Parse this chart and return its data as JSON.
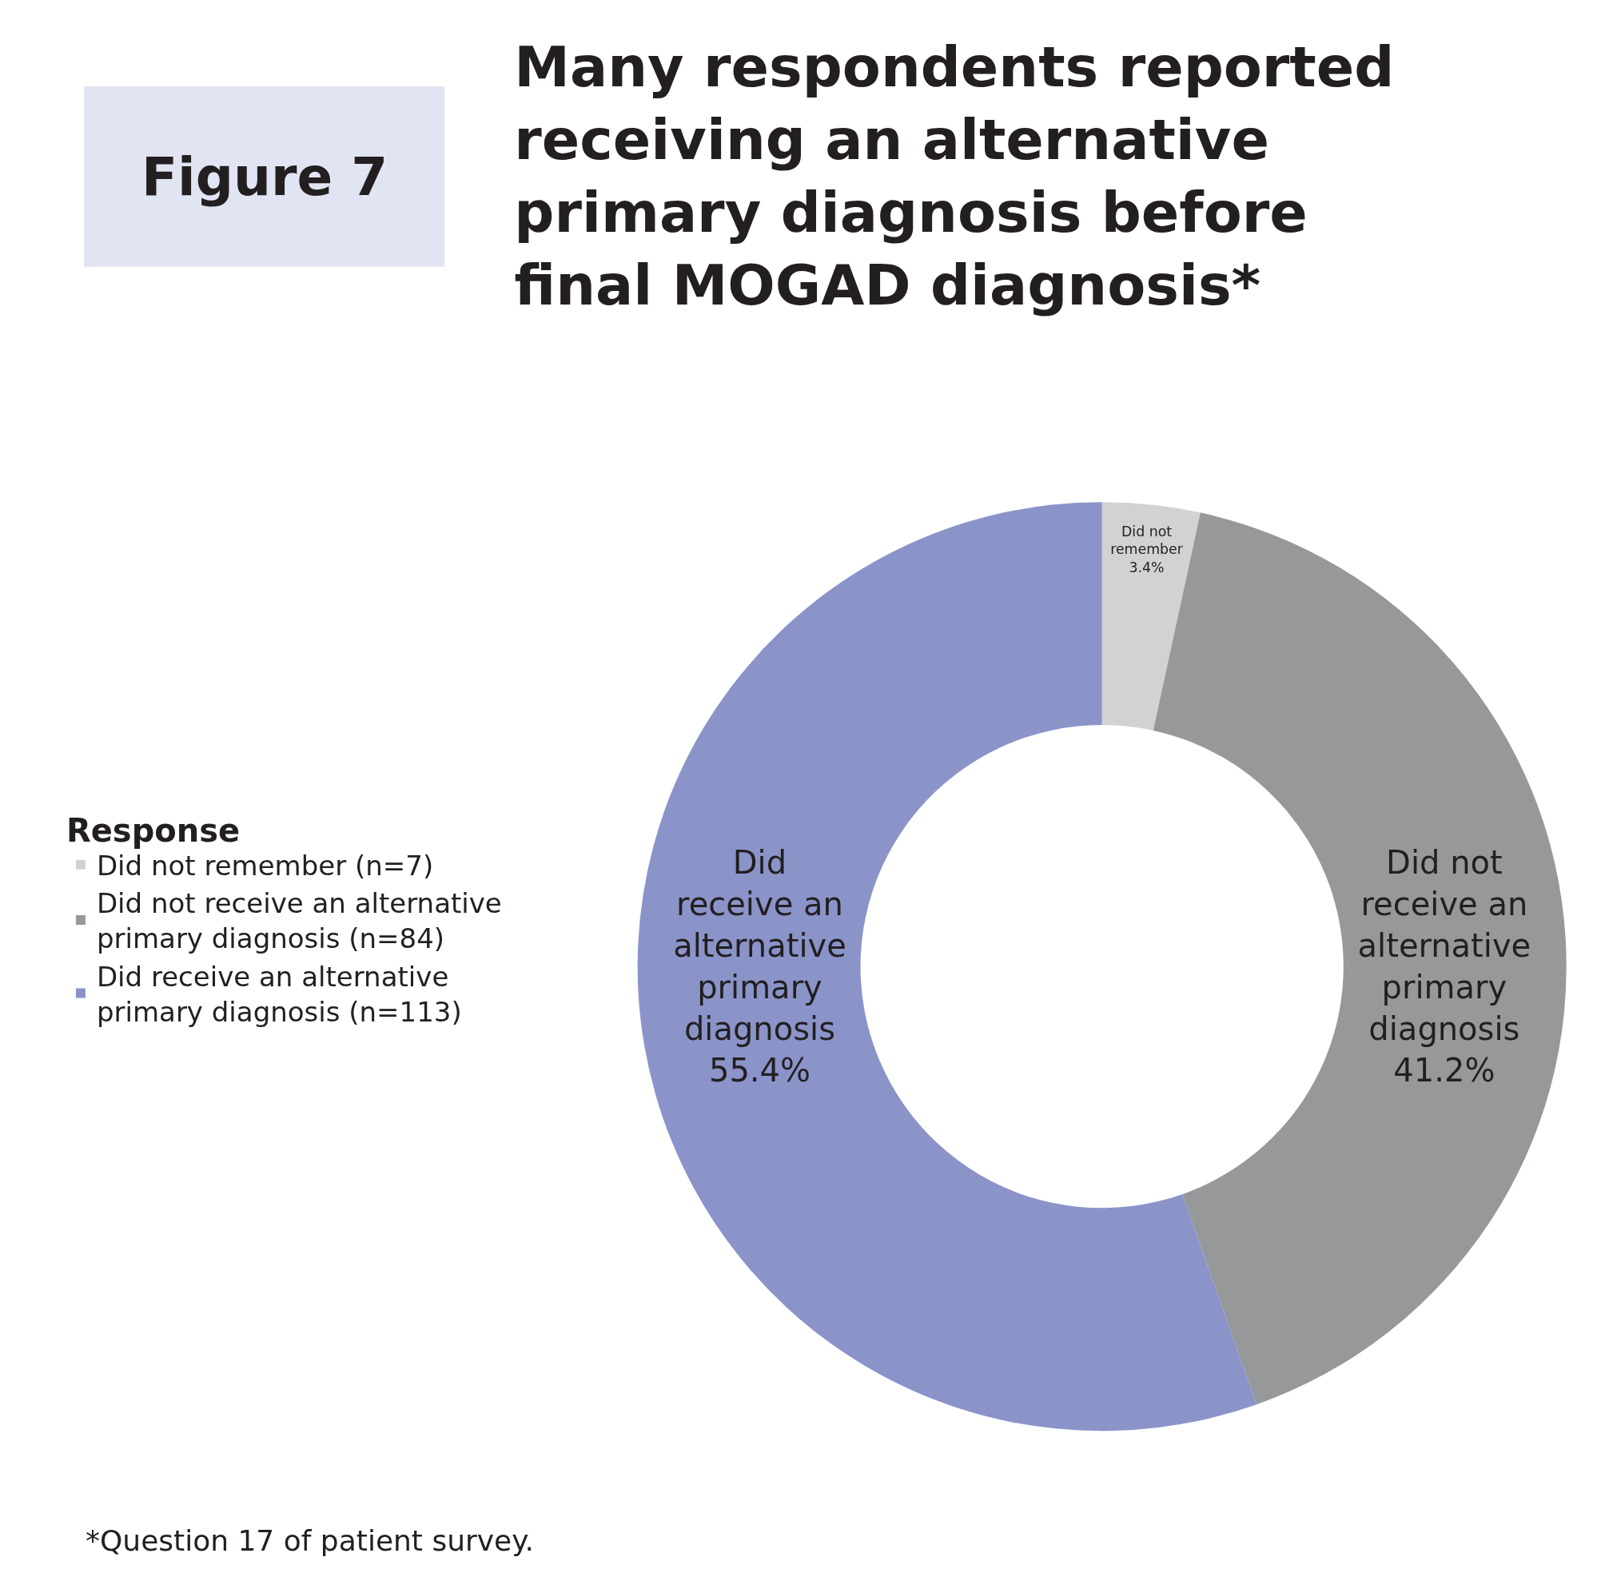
{
  "chart_data": {
    "type": "donut",
    "title": "Many respondents reported\nreceiving an alternative\nprimary diagnosis before\nfinal MOGAD diagnosis*",
    "subtitle": "Figure 7",
    "legend_title": "Response",
    "categories": [
      "Did not remember (n=7)",
      "Did not receive an alternative\nprimary diagnosis (n=84)",
      "Did receive an alternative\nprimary diagnosis (n=113)"
    ],
    "values": [
      3.4,
      41.2,
      55.4
    ],
    "colors": [
      "#d1d2d4",
      "#97989a",
      "#8a94c9"
    ],
    "value_labels": [
      "Did not\nremember\n3.4%",
      "Did not\nreceive an\nalternative\nprimary\ndiagnosis\n41.2%",
      "Did\nreceive an\nalternative\nprimary\ndiagnosis\n55.4%"
    ],
    "legend": "left",
    "annotations": [
      "*Question 17 of patient survey."
    ]
  }
}
